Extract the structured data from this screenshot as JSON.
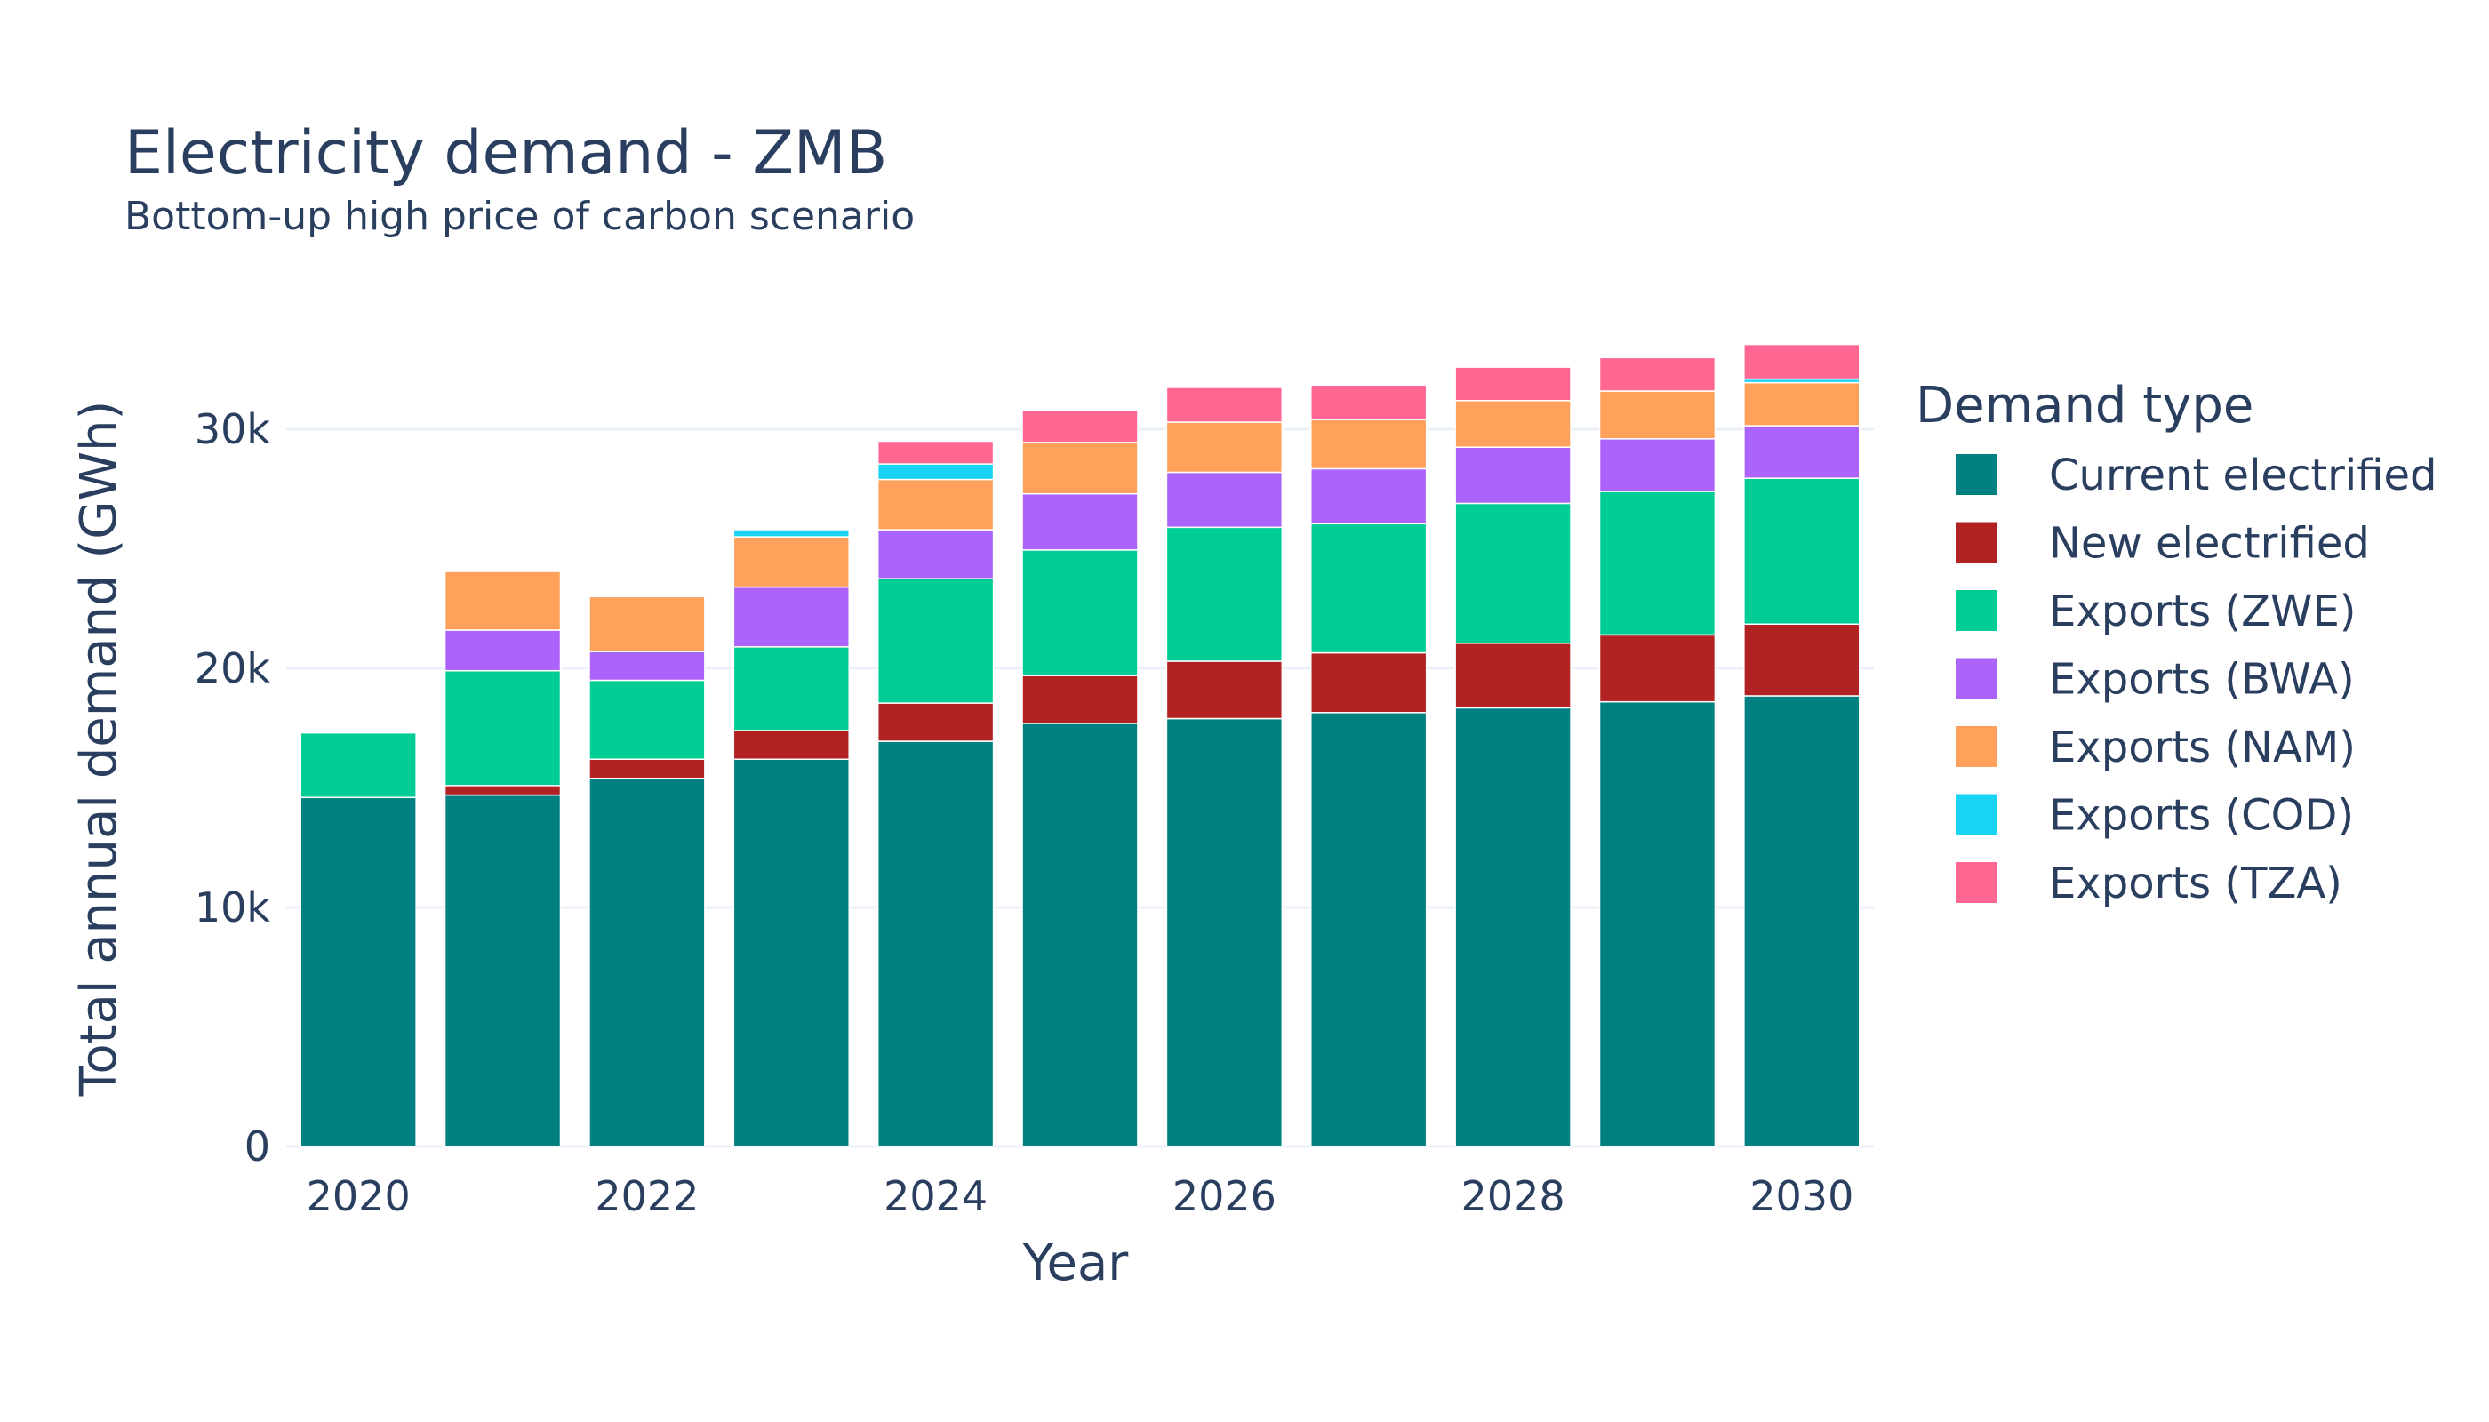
{
  "chart_data": {
    "type": "bar",
    "stacked": true,
    "title": "Electricity demand - ZMB",
    "subtitle": "Bottom-up high price of carbon scenario",
    "xlabel": "Year",
    "ylabel": "Total annual demand (GWh)",
    "ylim": [
      0,
      34500
    ],
    "yticks": [
      0,
      10000,
      20000,
      30000
    ],
    "ytick_labels": [
      "0",
      "10k",
      "20k",
      "30k"
    ],
    "xticks": [
      2020,
      2022,
      2024,
      2026,
      2028,
      2030
    ],
    "xtick_labels": [
      "2020",
      "2022",
      "2024",
      "2026",
      "2028",
      "2030"
    ],
    "categories": [
      2020,
      2021,
      2022,
      2023,
      2024,
      2025,
      2026,
      2027,
      2028,
      2029,
      2030
    ],
    "legend_title": "Demand type",
    "legend_position": "right",
    "grid": true,
    "series": [
      {
        "name": "Current electrified",
        "color": "#008080",
        "values": [
          14600,
          14700,
          15400,
          16200,
          16950,
          17700,
          17900,
          18150,
          18350,
          18600,
          18850
        ]
      },
      {
        "name": "New electrified",
        "color": "#b22222",
        "values": [
          0,
          400,
          800,
          1200,
          1600,
          2000,
          2400,
          2500,
          2700,
          2800,
          3000
        ]
      },
      {
        "name": "Exports (ZWE)",
        "color": "#00cc96",
        "values": [
          2700,
          4800,
          3300,
          3500,
          5200,
          5250,
          5600,
          5400,
          5850,
          6000,
          6100
        ]
      },
      {
        "name": "Exports (BWA)",
        "color": "#ab63fa",
        "values": [
          0,
          1700,
          1200,
          2500,
          2050,
          2350,
          2300,
          2300,
          2350,
          2200,
          2200
        ]
      },
      {
        "name": "Exports (NAM)",
        "color": "#ffa15a",
        "values": [
          0,
          2450,
          2300,
          2100,
          2100,
          2150,
          2100,
          2050,
          1950,
          2000,
          1800
        ]
      },
      {
        "name": "Exports (COD)",
        "color": "#19d3f3",
        "values": [
          0,
          0,
          0,
          300,
          650,
          0,
          0,
          0,
          0,
          0,
          150
        ]
      },
      {
        "name": "Exports (TZA)",
        "color": "#ff6692",
        "values": [
          0,
          0,
          0,
          0,
          950,
          1350,
          1450,
          1450,
          1400,
          1400,
          1450
        ]
      }
    ]
  }
}
